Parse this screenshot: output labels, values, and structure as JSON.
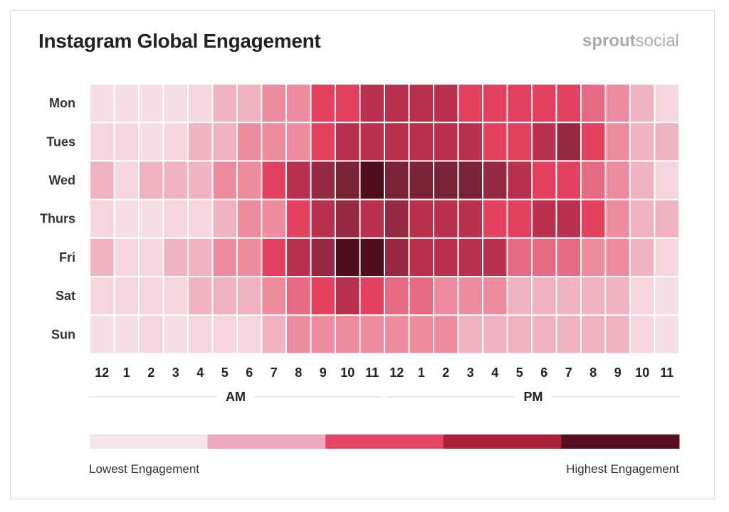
{
  "header": {
    "title": "Instagram Global Engagement",
    "brand_bold": "sprout",
    "brand_light": "social"
  },
  "chart_data": {
    "type": "heatmap",
    "title": "Instagram Global Engagement",
    "rows": [
      "Mon",
      "Tues",
      "Wed",
      "Thurs",
      "Fri",
      "Sat",
      "Sun"
    ],
    "columns": [
      "12",
      "1",
      "2",
      "3",
      "4",
      "5",
      "6",
      "7",
      "8",
      "9",
      "10",
      "11",
      "12",
      "1",
      "2",
      "3",
      "4",
      "5",
      "6",
      "7",
      "8",
      "9",
      "10",
      "11"
    ],
    "column_groups": [
      {
        "label": "AM",
        "start": 0,
        "end": 11
      },
      {
        "label": "PM",
        "start": 12,
        "end": 23
      }
    ],
    "scale": {
      "min": 0,
      "max": 10
    },
    "values": [
      [
        1,
        1,
        1,
        1,
        2,
        3,
        3,
        4,
        4,
        6,
        6,
        7,
        7,
        7,
        7,
        6,
        6,
        6,
        6,
        6,
        5,
        4,
        3,
        2
      ],
      [
        2,
        2,
        1,
        2,
        3,
        3,
        4,
        4,
        4,
        6,
        7,
        7,
        7,
        7,
        7,
        7,
        6,
        6,
        7,
        8,
        6,
        4,
        3,
        3
      ],
      [
        3,
        2,
        3,
        3,
        3,
        4,
        4,
        6,
        7,
        8,
        9,
        10,
        9,
        9,
        9,
        9,
        8,
        7,
        6,
        6,
        5,
        4,
        3,
        2
      ],
      [
        2,
        1,
        1,
        2,
        2,
        3,
        4,
        4,
        6,
        7,
        8,
        7,
        8,
        7,
        7,
        7,
        6,
        6,
        7,
        7,
        6,
        4,
        3,
        3
      ],
      [
        3,
        2,
        2,
        3,
        3,
        4,
        4,
        6,
        7,
        8,
        10,
        10,
        8,
        7,
        7,
        7,
        7,
        5,
        5,
        5,
        4,
        4,
        3,
        2
      ],
      [
        2,
        2,
        2,
        2,
        3,
        3,
        3,
        4,
        5,
        6,
        7,
        6,
        5,
        5,
        4,
        4,
        4,
        3,
        3,
        3,
        3,
        3,
        2,
        1
      ],
      [
        1,
        1,
        2,
        1,
        2,
        2,
        2,
        3,
        4,
        4,
        4,
        4,
        4,
        4,
        4,
        3,
        3,
        3,
        3,
        3,
        3,
        3,
        2,
        1
      ]
    ],
    "palette": [
      "#f6e9ee",
      "#f5dfe5",
      "#f5d6de",
      "#f0b2c0",
      "#ec8c9e",
      "#e66a84",
      "#e4405f",
      "#ba3150",
      "#962a43",
      "#7a2238",
      "#4e0e1e"
    ],
    "legend": {
      "colors": [
        "#f5e6ec",
        "#eea9bf",
        "#e54464",
        "#ab1f3b",
        "#560f20"
      ],
      "low_label": "Lowest Engagement",
      "high_label": "Highest Engagement"
    }
  }
}
